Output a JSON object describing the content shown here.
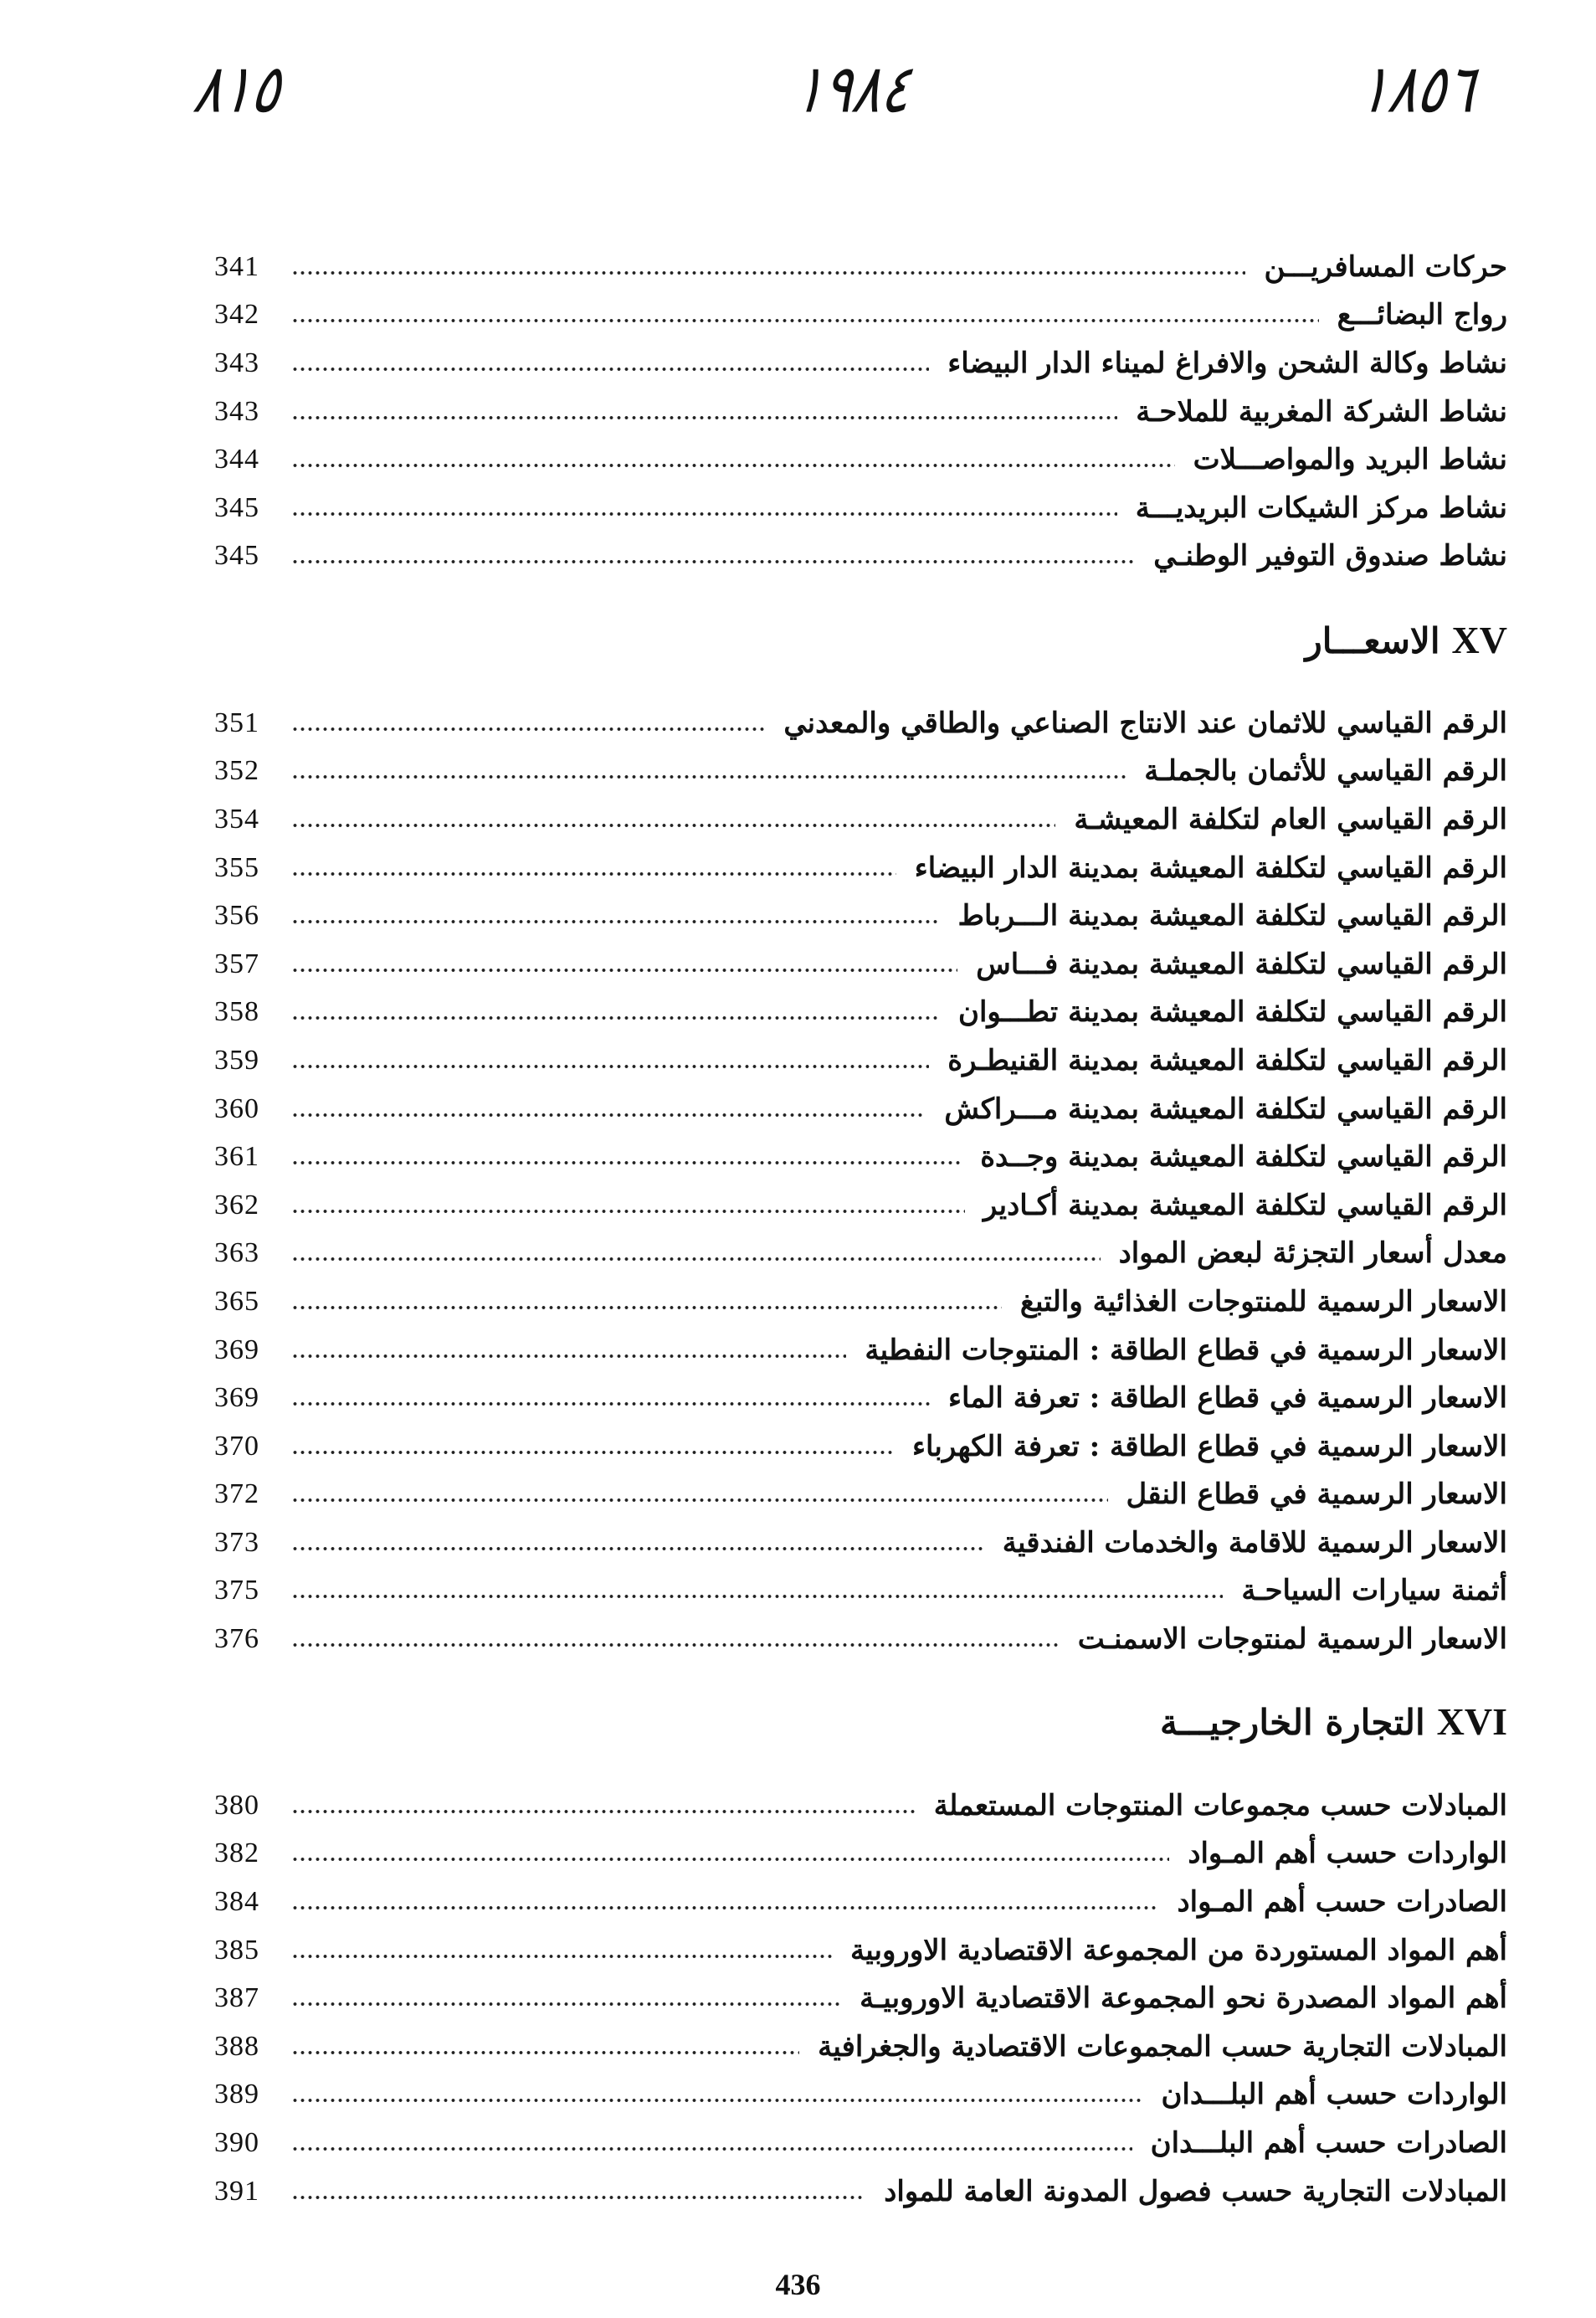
{
  "handwritten": {
    "left": "٨١٥",
    "center": "١٩٨٤",
    "right": "١٨٥٦"
  },
  "sections": [
    {
      "numeral": "",
      "title": "",
      "entries": [
        {
          "title": "حركات المسافريـــن",
          "page": "341"
        },
        {
          "title": "رواج البضائـــع",
          "page": "342"
        },
        {
          "title": "نشاط وكالة الشحن والافراغ لميناء الدار البيضاء",
          "page": "343"
        },
        {
          "title": "نشاط الشركة المغربية للملاحـة",
          "page": "343"
        },
        {
          "title": "نشاط البريد والمواصـــلات",
          "page": "344"
        },
        {
          "title": "نشاط مركز الشيكات البريديـــة",
          "page": "345"
        },
        {
          "title": "نشاط صندوق التوفير الوطنـي",
          "page": "345"
        }
      ]
    },
    {
      "numeral": "XV",
      "title": "الاسعـــار",
      "entries": [
        {
          "title": "الرقم القياسي للاثمان عند الانتاج الصناعي والطاقي والمعدني",
          "page": "351"
        },
        {
          "title": "الرقم القياسي للأثمان بالجملـة",
          "page": "352"
        },
        {
          "title": "الرقم القياسي العام لتكلفة المعيشـة",
          "page": "354"
        },
        {
          "title": "الرقم القياسي لتكلفة المعيشة بمدينة الدار البيضاء",
          "page": "355"
        },
        {
          "title": "الرقم القياسي لتكلفة المعيشة بمدينة الـــرباط",
          "page": "356"
        },
        {
          "title": "الرقم القياسي لتكلفة المعيشة بمدينة فـــاس",
          "page": "357"
        },
        {
          "title": "الرقم القياسي لتكلفة المعيشة بمدينة تطـــوان",
          "page": "358"
        },
        {
          "title": "الرقم القياسي لتكلفة المعيشة بمدينة القنيطـرة",
          "page": "359"
        },
        {
          "title": "الرقم القياسي لتكلفة المعيشة بمدينة مـــراكش",
          "page": "360"
        },
        {
          "title": "الرقم القياسي لتكلفة المعيشة بمدينة وجــدة",
          "page": "361"
        },
        {
          "title": "الرقم القياسي لتكلفة المعيشة بمدينة أكـادير",
          "page": "362"
        },
        {
          "title": "معدل أسعار التجزئة لبعض المواد",
          "page": "363"
        },
        {
          "title": "الاسعار الرسمية للمنتوجات الغذائية والتبغ",
          "page": "365"
        },
        {
          "title": "الاسعار الرسمية في قطاع الطاقة : المنتوجات النفطية",
          "page": "369"
        },
        {
          "title": "الاسعار الرسمية في قطاع الطاقة : تعرفة الماء",
          "page": "369"
        },
        {
          "title": "الاسعار الرسمية في قطاع الطاقة : تعرفة الكهرباء",
          "page": "370"
        },
        {
          "title": "الاسعار الرسمية في قطاع النقل",
          "page": "372"
        },
        {
          "title": "الاسعار الرسمية للاقامة والخدمات الفندقية",
          "page": "373"
        },
        {
          "title": "أثمنة سيارات السياحـة",
          "page": "375"
        },
        {
          "title": "الاسعار الرسمية لمنتوجات الاسمنـت",
          "page": "376"
        }
      ]
    },
    {
      "numeral": "XVI",
      "title": "التجارة الخارجيـــة",
      "entries": [
        {
          "title": "المبادلات حسب مجموعات المنتوجات المستعملة",
          "page": "380"
        },
        {
          "title": "الواردات حسب أهم المـواد",
          "page": "382"
        },
        {
          "title": "الصادرات حسب أهم المـواد",
          "page": "384"
        },
        {
          "title": "أهم المواد المستوردة من المجموعة الاقتصادية الاوروبية",
          "page": "385"
        },
        {
          "title": "أهم المواد المصدرة نحو المجموعة الاقتصادية الاوروبيـة",
          "page": "387"
        },
        {
          "title": "المبادلات التجارية حسب المجموعات الاقتصادية والجغرافية",
          "page": "388"
        },
        {
          "title": "الواردات حسب أهم البلـــدان",
          "page": "389"
        },
        {
          "title": "الصادرات حسب أهم البلـــدان",
          "page": "390"
        },
        {
          "title": "المبادلات التجارية حسب فصول المدونة العامة للمواد",
          "page": "391"
        }
      ]
    }
  ],
  "footer": {
    "page_number": "436"
  }
}
